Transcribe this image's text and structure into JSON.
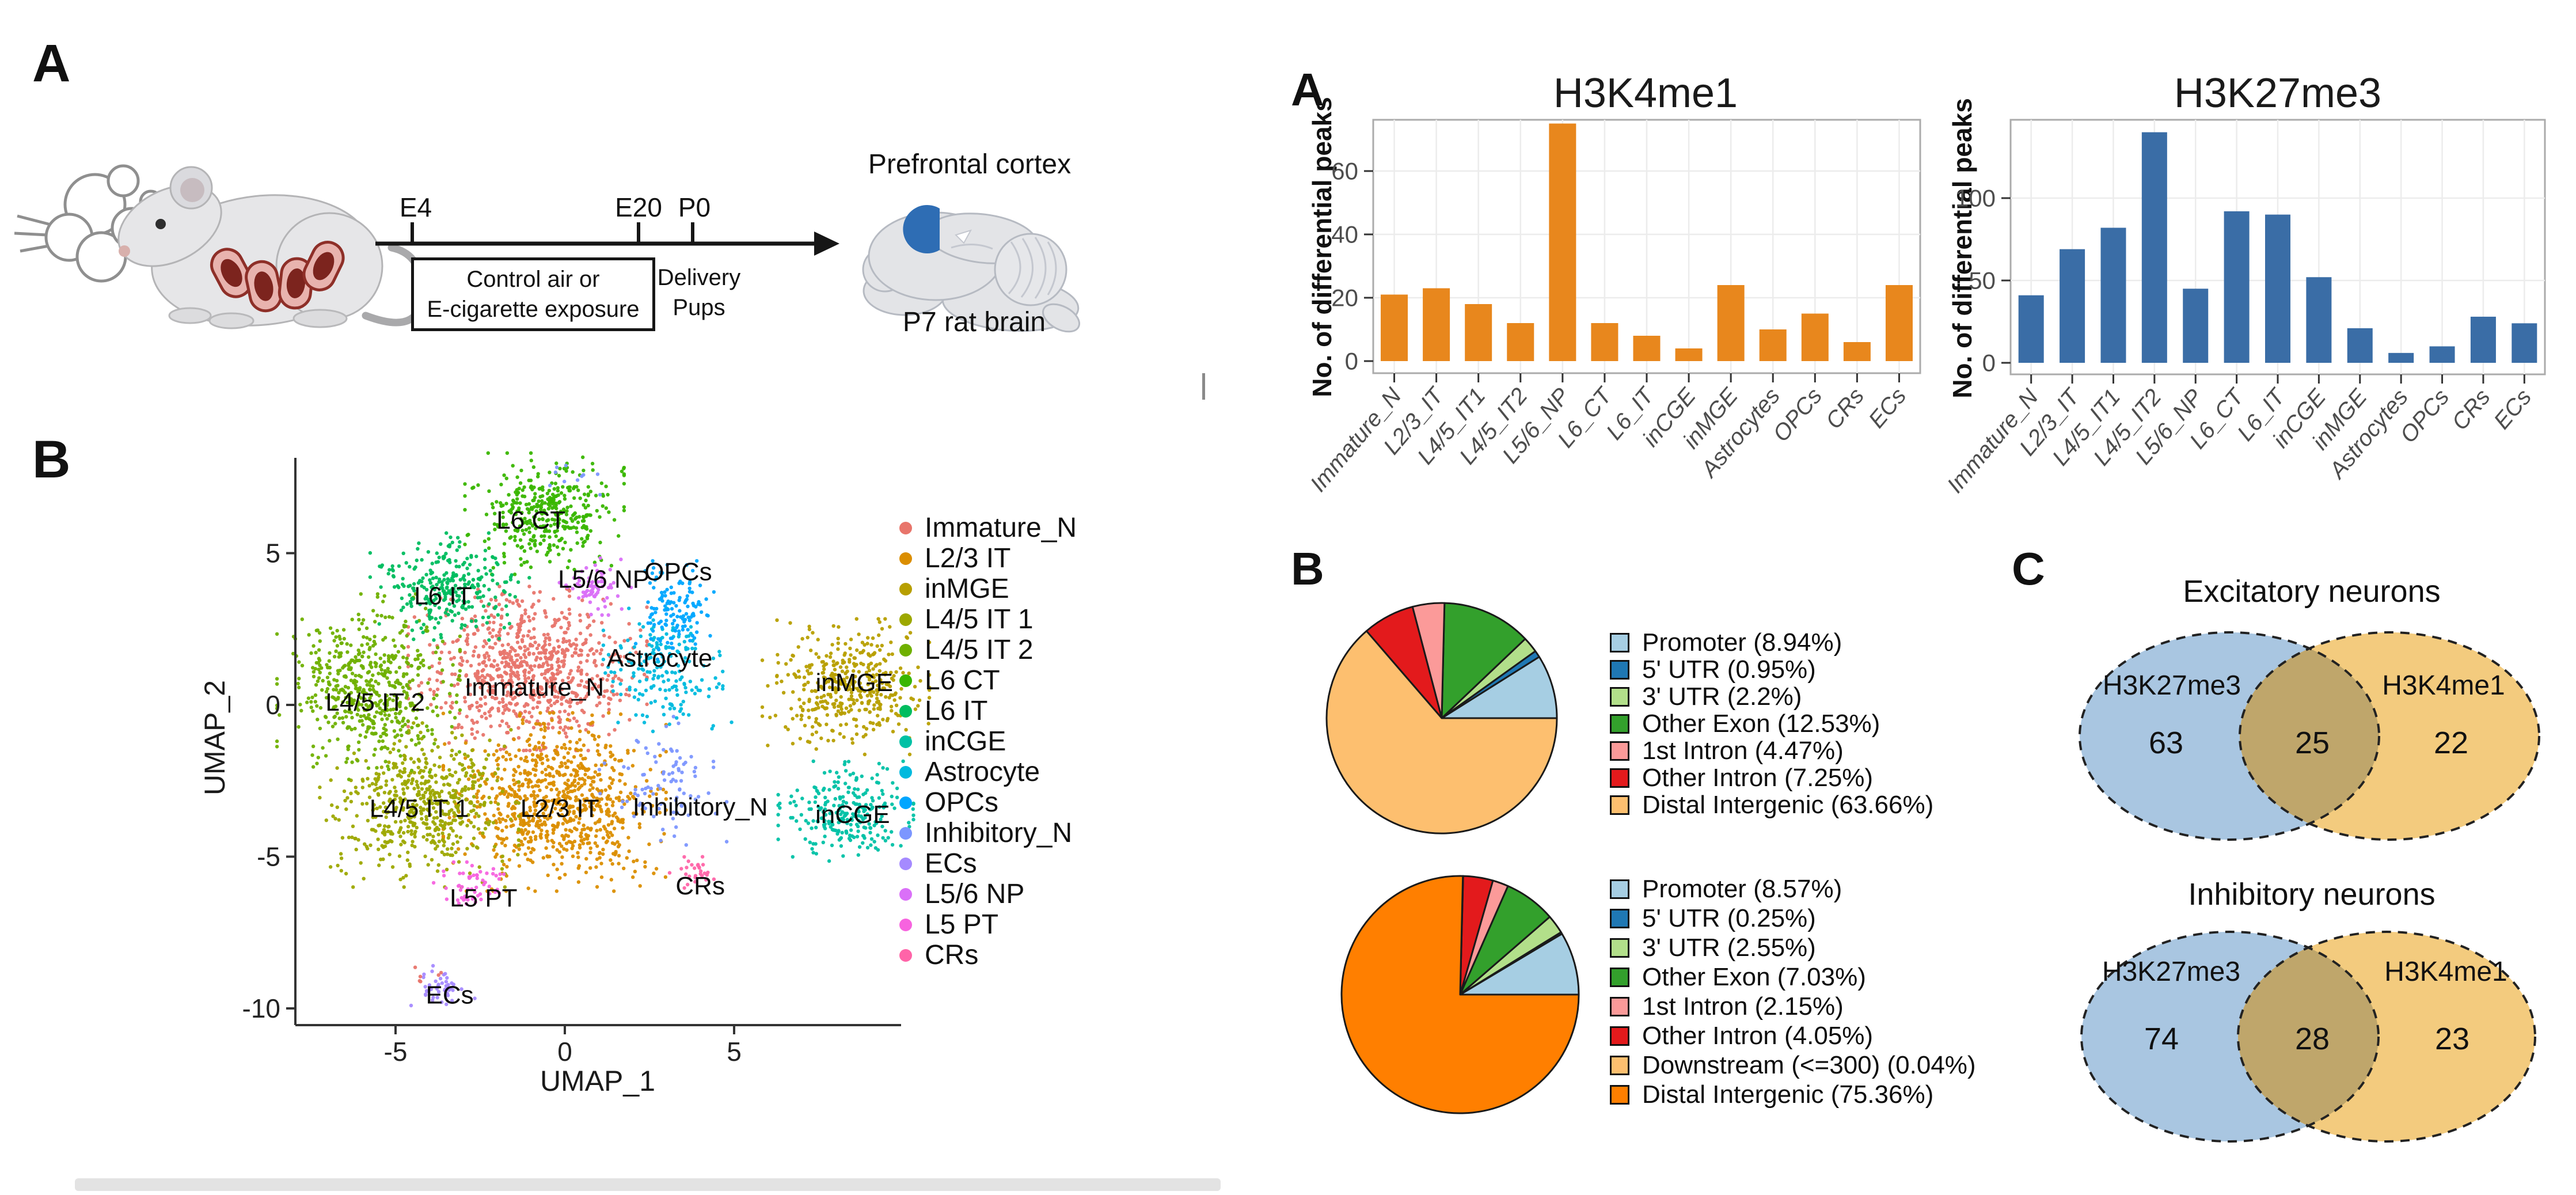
{
  "panel_labels": {
    "left_a": "A",
    "left_b": "B",
    "right_a": "A",
    "right_b": "B",
    "right_c": "C"
  },
  "schematic": {
    "timeline_start": "E4",
    "timeline_mid": "E20",
    "timeline_end": "P0",
    "exposure_box_line1": "Control air or",
    "exposure_box_line2": "E-cigarette exposure",
    "delivery_line1": "Delivery",
    "delivery_line2": "Pups",
    "brain_top_label": "Prefrontal cortex",
    "brain_bottom_label": "P7 rat brain",
    "icons": [
      "smoke-cloud-icon",
      "pregnant-rat-icon",
      "rat-brain-icon"
    ]
  },
  "chart_data": [
    {
      "id": "umap",
      "type": "scatter",
      "xlabel": "UMAP_1",
      "ylabel": "UMAP_2",
      "xticks": [
        "-5",
        "0",
        "5"
      ],
      "xtick_values": [
        -5,
        0,
        5
      ],
      "yticks": [
        "5",
        "0",
        "-5",
        "-10"
      ],
      "ytick_values": [
        5,
        0,
        -5,
        -10
      ],
      "xlim": [
        -8,
        10
      ],
      "ylim": [
        -10.6,
        8.2
      ],
      "grid": false,
      "legend_position": "right",
      "clusters": [
        {
          "name": "Immature_N",
          "color": "#E8756B",
          "center": [
            -1.1,
            1.2
          ],
          "spread": [
            1.5,
            1.15
          ],
          "n": 800,
          "label_at": [
            -0.9,
            0.6
          ]
        },
        {
          "name": "L2/3 IT",
          "color": "#DB8E00",
          "center": [
            -0.3,
            -3.2
          ],
          "spread": [
            1.4,
            1.25
          ],
          "n": 800,
          "label_at": [
            -0.15,
            -3.4
          ]
        },
        {
          "name": "inMGE",
          "color": "#B79F00",
          "center": [
            8.3,
            0.6
          ],
          "spread": [
            1.05,
            0.95
          ],
          "n": 420,
          "label_at": [
            8.55,
            0.75
          ]
        },
        {
          "name": "L4/5 IT 1",
          "color": "#9DA800",
          "center": [
            -4.3,
            -3.3
          ],
          "spread": [
            1.25,
            1.15
          ],
          "n": 550,
          "label_at": [
            -4.3,
            -3.4
          ]
        },
        {
          "name": "L4/5 IT 2",
          "color": "#6FB000",
          "center": [
            -5.8,
            0.6
          ],
          "spread": [
            1.15,
            1.3
          ],
          "n": 550,
          "label_at": [
            -5.6,
            0.1
          ]
        },
        {
          "name": "L6 CT",
          "color": "#39B600",
          "center": [
            -0.6,
            6.3
          ],
          "spread": [
            1.0,
            0.85
          ],
          "n": 380,
          "label_at": [
            -1.0,
            6.1
          ]
        },
        {
          "name": "L6 IT",
          "color": "#00BD5F",
          "center": [
            -3.4,
            3.9
          ],
          "spread": [
            1.0,
            0.75
          ],
          "n": 280,
          "label_at": [
            -3.6,
            3.6
          ]
        },
        {
          "name": "inCGE",
          "color": "#00C1A5",
          "center": [
            8.3,
            -3.5
          ],
          "spread": [
            0.85,
            0.7
          ],
          "n": 260,
          "label_at": [
            8.5,
            -3.6
          ]
        },
        {
          "name": "Astrocyte",
          "color": "#00BADE",
          "center": [
            2.9,
            1.3
          ],
          "spread": [
            0.75,
            0.8
          ],
          "n": 170,
          "label_at": [
            2.8,
            1.55
          ]
        },
        {
          "name": "OPCs",
          "color": "#00A6FF",
          "center": [
            3.3,
            3.1
          ],
          "spread": [
            0.55,
            0.7
          ],
          "n": 130,
          "label_at": [
            3.35,
            4.4
          ]
        },
        {
          "name": "Inhibitory_N",
          "color": "#7C96FF",
          "center": [
            2.9,
            -2.5
          ],
          "spread": [
            0.8,
            0.9
          ],
          "n": 90,
          "label_at": [
            4.0,
            -3.35
          ]
        },
        {
          "name": "ECs",
          "color": "#A58AFF",
          "center": [
            -3.6,
            -9.3
          ],
          "spread": [
            0.4,
            0.3
          ],
          "n": 45,
          "label_at": [
            -3.4,
            -9.55
          ]
        },
        {
          "name": "L5/6 NP",
          "color": "#DA70F8",
          "center": [
            0.9,
            3.9
          ],
          "spread": [
            0.45,
            0.4
          ],
          "n": 70,
          "label_at": [
            1.15,
            4.15
          ]
        },
        {
          "name": "L5 PT",
          "color": "#F763DF",
          "center": [
            -2.7,
            -6.0
          ],
          "spread": [
            0.5,
            0.35
          ],
          "n": 55,
          "label_at": [
            -2.4,
            -6.35
          ]
        },
        {
          "name": "CRs",
          "color": "#FF64A8",
          "center": [
            3.8,
            -5.5
          ],
          "spread": [
            0.3,
            0.25
          ],
          "n": 28,
          "label_at": [
            4.0,
            -5.95
          ]
        }
      ],
      "noise": [
        {
          "color": "#7C96FF",
          "center": [
            0.3,
            7.6
          ],
          "spread": [
            0.5,
            0.3
          ],
          "n": 10
        },
        {
          "color": "#00BADE",
          "center": [
            3.6,
            -0.3
          ],
          "spread": [
            0.6,
            0.6
          ],
          "n": 18
        },
        {
          "color": "#E8756B",
          "center": [
            -4.1,
            -8.9
          ],
          "spread": [
            0.3,
            0.2
          ],
          "n": 6
        },
        {
          "color": "#DB8E00",
          "center": [
            1.8,
            -5.2
          ],
          "spread": [
            0.5,
            0.4
          ],
          "n": 12
        }
      ],
      "legend": [
        "Immature_N",
        "L2/3 IT",
        "inMGE",
        "L4/5 IT 1",
        "L4/5 IT 2",
        "L6 CT",
        "L6 IT",
        "inCGE",
        "Astrocyte",
        "OPCs",
        "Inhibitory_N",
        "ECs",
        "L5/6 NP",
        "L5 PT",
        "CRs"
      ]
    },
    {
      "id": "h3k4me1_bars",
      "type": "bar",
      "title": "H3K4me1",
      "ylabel": "No. of differential peaks",
      "bar_color": "#E8871D",
      "categories": [
        "Immature_N",
        "L2/3_IT",
        "L4/5_IT1",
        "L4/5_IT2",
        "L5/6_NP",
        "L6_CT",
        "L6_IT",
        "inCGE",
        "inMGE",
        "Astrocytes",
        "OPCs",
        "CRs",
        "ECs"
      ],
      "values": [
        21,
        23,
        18,
        12,
        75,
        12,
        8,
        4,
        24,
        10,
        15,
        6,
        24
      ],
      "yticks": [
        0,
        20,
        40,
        60
      ],
      "ylim": [
        0,
        76
      ],
      "grid": true
    },
    {
      "id": "h3k27me3_bars",
      "type": "bar",
      "title": "H3K27me3",
      "ylabel": "No. of differential peaks",
      "bar_color": "#3A6DA6",
      "categories": [
        "Immature_N",
        "L2/3_IT",
        "L4/5_IT1",
        "L4/5_IT2",
        "L5/6_NP",
        "L6_CT",
        "L6_IT",
        "inCGE",
        "inMGE",
        "Astrocytes",
        "OPCs",
        "CRs",
        "ECs"
      ],
      "values": [
        41,
        69,
        82,
        140,
        45,
        92,
        90,
        52,
        21,
        6,
        10,
        28,
        24
      ],
      "yticks": [
        0,
        50,
        100
      ],
      "ylim": [
        0,
        147
      ],
      "grid": true
    },
    {
      "id": "pie_excitatory",
      "type": "pie",
      "start_angle_deg": 0,
      "direction": "ccw",
      "slices": [
        {
          "label": "Promoter (8.94%)",
          "value": 8.94,
          "color": "#A6CEE3"
        },
        {
          "label": "5' UTR (0.95%)",
          "value": 0.95,
          "color": "#1F78B4"
        },
        {
          "label": "3' UTR (2.2%)",
          "value": 2.2,
          "color": "#B2DF8A"
        },
        {
          "label": "Other Exon (12.53%)",
          "value": 12.53,
          "color": "#33A02C"
        },
        {
          "label": "1st Intron (4.47%)",
          "value": 4.47,
          "color": "#FB9A99"
        },
        {
          "label": "Other Intron (7.25%)",
          "value": 7.25,
          "color": "#E31A1C"
        },
        {
          "label": "Distal Intergenic (63.66%)",
          "value": 63.66,
          "color": "#FDBF6F"
        }
      ]
    },
    {
      "id": "pie_inhibitory",
      "type": "pie",
      "start_angle_deg": 0,
      "direction": "ccw",
      "slices": [
        {
          "label": "Promoter (8.57%)",
          "value": 8.57,
          "color": "#A6CEE3"
        },
        {
          "label": "5' UTR (0.25%)",
          "value": 0.25,
          "color": "#1F78B4"
        },
        {
          "label": "3' UTR (2.55%)",
          "value": 2.55,
          "color": "#B2DF8A"
        },
        {
          "label": "Other Exon (7.03%)",
          "value": 7.03,
          "color": "#33A02C"
        },
        {
          "label": "1st Intron (2.15%)",
          "value": 2.15,
          "color": "#FB9A99"
        },
        {
          "label": "Other Intron (4.05%)",
          "value": 4.05,
          "color": "#E31A1C"
        },
        {
          "label": "Downstream (<=300) (0.04%)",
          "value": 0.04,
          "color": "#FDBF6F"
        },
        {
          "label": "Distal Intergenic (75.36%)",
          "value": 75.36,
          "color": "#FF7F00"
        }
      ]
    },
    {
      "id": "venn_excitatory",
      "type": "venn",
      "title": "Excitatory neurons",
      "sets": [
        {
          "label": "H3K27me3",
          "only": "63",
          "color": "#A9C6E1"
        },
        {
          "label": "H3K4me1",
          "only": "22",
          "color": "#F3CB7E"
        }
      ],
      "overlap": "25",
      "overlap_color": "#BFA66B"
    },
    {
      "id": "venn_inhibitory",
      "type": "venn",
      "title": "Inhibitory neurons",
      "sets": [
        {
          "label": "H3K27me3",
          "only": "74",
          "color": "#A9C6E1"
        },
        {
          "label": "H3K4me1",
          "only": "23",
          "color": "#F3CB7E"
        }
      ],
      "overlap": "28",
      "overlap_color": "#BFA66B"
    }
  ]
}
